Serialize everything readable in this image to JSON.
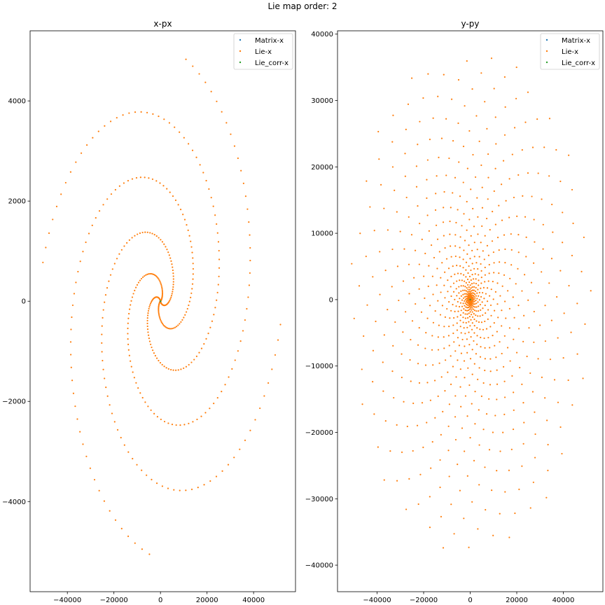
{
  "figure": {
    "suptitle": "Lie map order: 2"
  },
  "chart_data": [
    {
      "type": "scatter",
      "title": "x-px",
      "xlabel": "",
      "ylabel": "",
      "xlim": [
        -56000,
        58000
      ],
      "ylim": [
        -5800,
        5400
      ],
      "xticks": [
        -40000,
        -20000,
        0,
        20000,
        40000
      ],
      "yticks": [
        -4000,
        -2000,
        0,
        2000,
        4000
      ],
      "grid": false,
      "legend": {
        "placement": "top-right",
        "entries": [
          "Matrix-x",
          "Lie-x",
          "Lie_corr-x"
        ]
      },
      "pattern": "spiral",
      "series": [
        {
          "name": "Matrix-x",
          "color": "#1f77b4",
          "points": [
            [
              0,
              0
            ]
          ]
        },
        {
          "name": "Lie-x",
          "color": "#ff7f0e",
          "arms": 4,
          "arm_length": 120,
          "r_max": 5200,
          "turns": 1.2,
          "x_scale": 10.2,
          "rotation_deg": 20,
          "extent_x": [
            -51000,
            52000
          ],
          "extent_y": [
            -5100,
            4850
          ]
        },
        {
          "name": "Lie_corr-x",
          "color": "#2ca02c",
          "points": [
            [
              0,
              0
            ]
          ]
        }
      ]
    },
    {
      "type": "scatter",
      "title": "y-py",
      "xlabel": "",
      "ylabel": "",
      "xlim": [
        -57000,
        57000
      ],
      "ylim": [
        -44000,
        40500
      ],
      "xticks": [
        -40000,
        -20000,
        0,
        20000,
        40000
      ],
      "yticks": [
        -40000,
        -30000,
        -20000,
        -10000,
        0,
        10000,
        20000,
        30000,
        40000
      ],
      "grid": false,
      "legend": {
        "placement": "top-right",
        "entries": [
          "Matrix-x",
          "Lie-x",
          "Lie_corr-x"
        ]
      },
      "pattern": "ellipse",
      "series": [
        {
          "name": "Matrix-x",
          "color": "#1f77b4",
          "points": [
            [
              0,
              0
            ]
          ]
        },
        {
          "name": "Lie-x",
          "color": "#ff7f0e",
          "point_count": 900,
          "r_max": 1.0,
          "x_radius": 52000,
          "y_radius": 39000,
          "extent_x": [
            -55000,
            52000
          ],
          "extent_y": [
            -39000,
            37000
          ]
        },
        {
          "name": "Lie_corr-x",
          "color": "#2ca02c",
          "points": [
            [
              0,
              0
            ]
          ]
        }
      ]
    }
  ]
}
